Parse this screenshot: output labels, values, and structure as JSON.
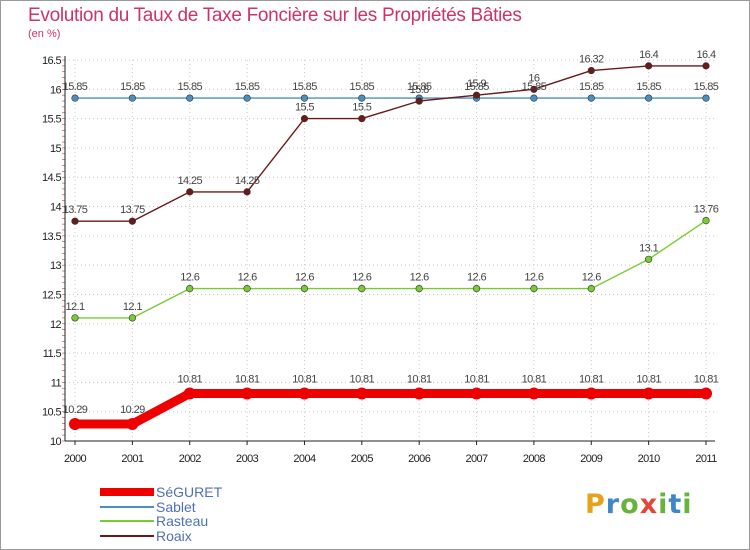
{
  "title": "Evolution du Taux de Taxe Foncière sur les Propriétés Bâties",
  "unit": "(en %)",
  "logo": {
    "letters": [
      "P",
      "r",
      "o",
      "x",
      "i",
      "t",
      "i"
    ],
    "colors": [
      "#e8a21a",
      "#3f86c9",
      "#67b33b",
      "#e2483a",
      "#67b33b",
      "#3f86c9",
      "#67b33b"
    ]
  },
  "colors": {
    "title": "#cc3366",
    "axis": "#222222",
    "grid": "#c8c8c8",
    "legend_text": "#4f6fb6"
  },
  "chart_data": {
    "type": "line",
    "title": "Evolution du Taux de Taxe Foncière sur les Propriétés Bâties",
    "ylabel": "(en %)",
    "xlabel": "",
    "categories": [
      "2000",
      "2001",
      "2002",
      "2003",
      "2004",
      "2005",
      "2006",
      "2007",
      "2008",
      "2009",
      "2010",
      "2011"
    ],
    "ylim": [
      10,
      16.5
    ],
    "yticks": [
      "10",
      "10.5",
      "11",
      "11.5",
      "12",
      "12.5",
      "13",
      "13.5",
      "14",
      "14.5",
      "15",
      "15.5",
      "16",
      "16.5"
    ],
    "legend_position": "bottom-left",
    "series": [
      {
        "name": "SéGURET",
        "color": "#ee0000",
        "values": [
          10.29,
          10.29,
          10.81,
          10.81,
          10.81,
          10.81,
          10.81,
          10.81,
          10.81,
          10.81,
          10.81,
          10.81
        ],
        "labels": [
          "10.29",
          "10.29",
          "10.81",
          "10.81",
          "10.81",
          "10.81",
          "10.81",
          "10.81",
          "10.81",
          "10.81",
          "10.81",
          "10.81"
        ],
        "bold": true
      },
      {
        "name": "Sablet",
        "color": "#4a8fc4",
        "values": [
          15.85,
          15.85,
          15.85,
          15.85,
          15.85,
          15.85,
          15.85,
          15.85,
          15.85,
          15.85,
          15.85,
          15.85
        ],
        "labels": [
          "15.85",
          "15.85",
          "15.85",
          "15.85",
          "15.85",
          "15.85",
          "15.85",
          "15.85",
          "15.85",
          "15.85",
          "15.85",
          "15.85"
        ],
        "bold": false
      },
      {
        "name": "Rasteau",
        "color": "#77cc33",
        "values": [
          12.1,
          12.1,
          12.6,
          12.6,
          12.6,
          12.6,
          12.6,
          12.6,
          12.6,
          12.6,
          13.1,
          13.76
        ],
        "labels": [
          "12.1",
          "12.1",
          "12.6",
          "12.6",
          "12.6",
          "12.6",
          "12.6",
          "12.6",
          "12.6",
          "12.6",
          "13.1",
          "13.76"
        ],
        "bold": false
      },
      {
        "name": "Roaix",
        "color": "#6b1a1a",
        "values": [
          13.75,
          13.75,
          14.25,
          14.25,
          15.5,
          15.5,
          15.8,
          15.9,
          16.0,
          16.32,
          16.4,
          16.4
        ],
        "labels": [
          "13.75",
          "13.75",
          "14.25",
          "14.25",
          "15.5",
          "15.5",
          "15.8",
          "15.9",
          "16",
          "16.32",
          "16.4",
          "16.4"
        ],
        "bold": false
      }
    ]
  }
}
